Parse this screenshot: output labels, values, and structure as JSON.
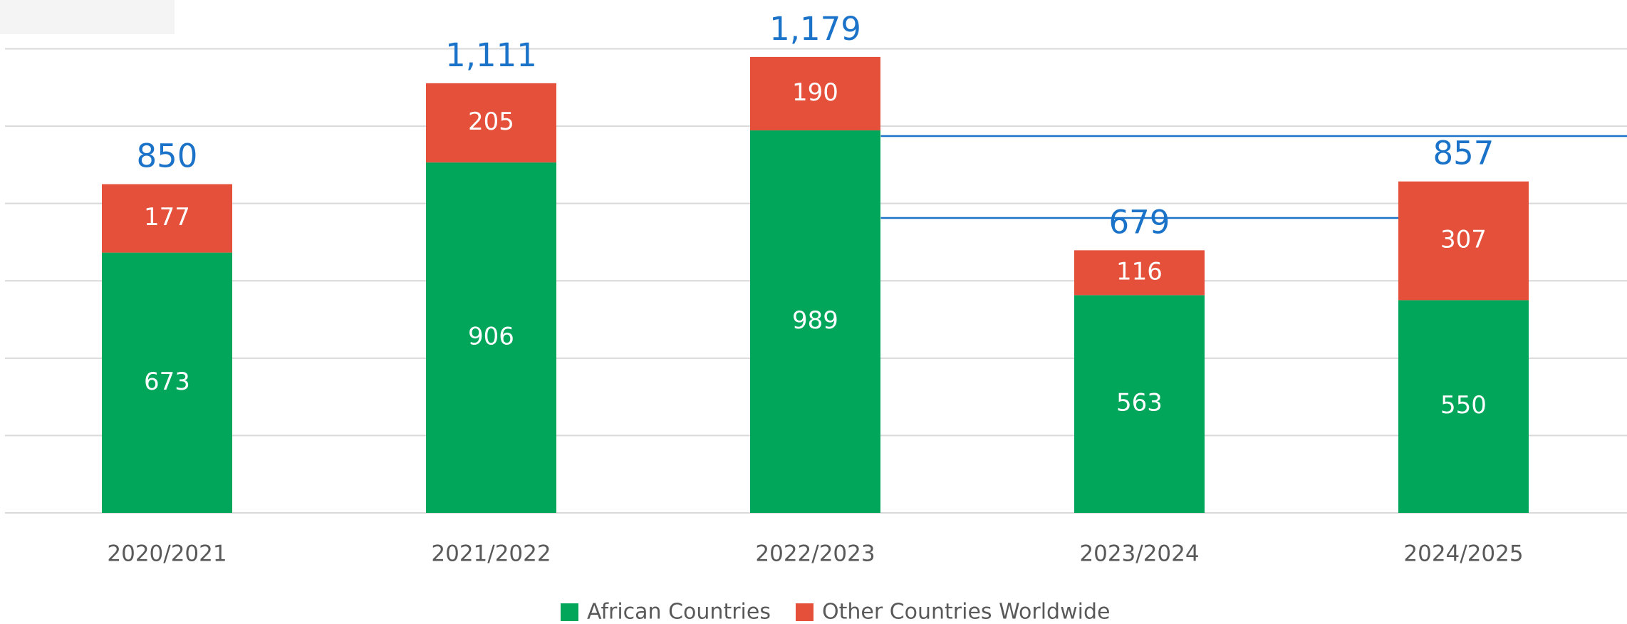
{
  "chart_data": {
    "type": "stacked_bar",
    "categories": [
      "2020/2021",
      "2021/2022",
      "2022/2023",
      "2023/2024",
      "2024/2025"
    ],
    "series": [
      {
        "name": "African Countries",
        "color": "#02a65b",
        "values": [
          673,
          906,
          989,
          563,
          550
        ]
      },
      {
        "name": "Other Countries Worldwide",
        "color": "#e5503a",
        "values": [
          177,
          205,
          190,
          116,
          307
        ]
      }
    ],
    "totals": [
      850,
      1111,
      1179,
      679,
      857
    ],
    "total_labels": [
      "850",
      "1,111",
      "1,179",
      "679",
      "857"
    ],
    "total_color": "#1a73c8",
    "ylim": [
      0,
      1200
    ],
    "yticks": [
      0,
      200,
      400,
      600,
      800,
      1000,
      1200
    ],
    "grid": true,
    "legend": "bottom"
  }
}
